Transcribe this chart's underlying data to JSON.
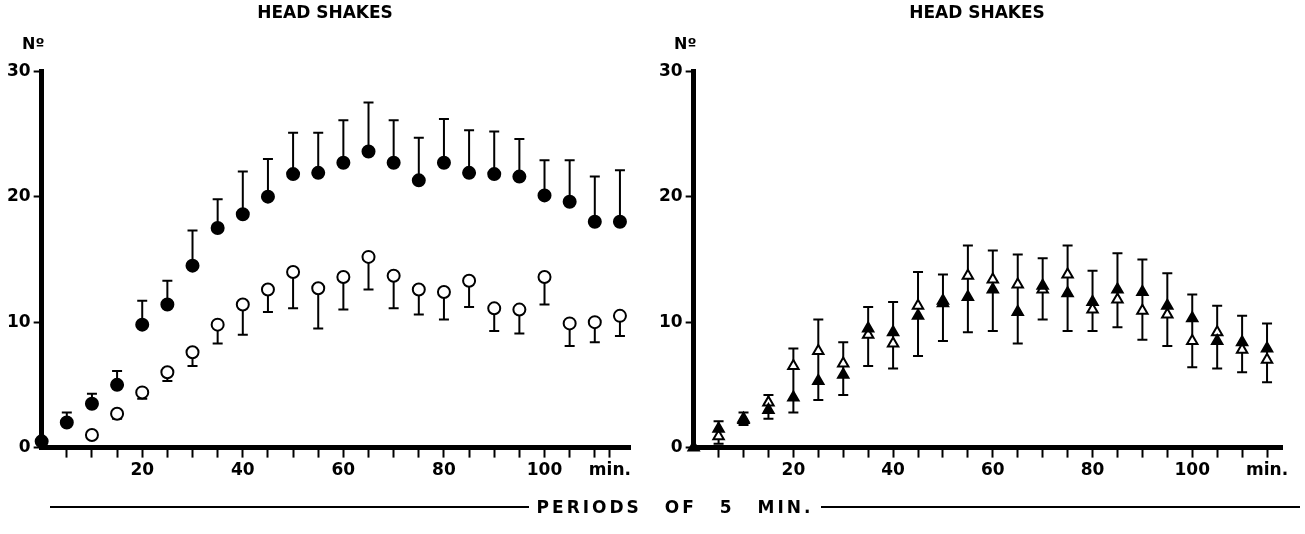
{
  "chart_data": [
    {
      "type": "scatter",
      "title": "HEAD SHAKES",
      "ylabel": "Nº",
      "xlabel": "PERIODS OF 5 MIN.",
      "xlim": [
        0,
        117
      ],
      "ylim": [
        0,
        30
      ],
      "yticks": [
        0,
        10,
        20,
        30
      ],
      "xticks": [
        {
          "value": 5,
          "label": null
        },
        {
          "value": 10,
          "label": null
        },
        {
          "value": 15,
          "label": null
        },
        20,
        {
          "value": 25,
          "label": null
        },
        {
          "value": 30,
          "label": null
        },
        {
          "value": 35,
          "label": null
        },
        40,
        {
          "value": 45,
          "label": null
        },
        {
          "value": 50,
          "label": null
        },
        {
          "value": 55,
          "label": null
        },
        60,
        {
          "value": 65,
          "label": null
        },
        {
          "value": 70,
          "label": null
        },
        {
          "value": 75,
          "label": null
        },
        80,
        {
          "value": 85,
          "label": null
        },
        {
          "value": 90,
          "label": null
        },
        {
          "value": 95,
          "label": null
        },
        100,
        {
          "value": 105,
          "label": null
        },
        {
          "value": 110,
          "label": null
        },
        {
          "value": 113,
          "label": "min."
        }
      ],
      "grid": false,
      "legend": false,
      "x": [
        0,
        5,
        10,
        15,
        20,
        25,
        30,
        35,
        40,
        45,
        50,
        55,
        60,
        65,
        70,
        75,
        80,
        85,
        90,
        95,
        100,
        105,
        110,
        115
      ],
      "series": [
        {
          "color": "#000000",
          "marker": "circle",
          "values": [
            0.5,
            2,
            3.5,
            5,
            9.8,
            11.4,
            14.5,
            17.5,
            18.6,
            20,
            21.8,
            21.9,
            22.7,
            23.6,
            22.7,
            21.3,
            22.7,
            21.9,
            21.8,
            21.6,
            20.1,
            19.6,
            18,
            18
          ],
          "errors": [
            null,
            [
              2,
              2.8
            ],
            [
              3.5,
              4.3
            ],
            [
              5,
              6.1
            ],
            [
              9.8,
              11.7
            ],
            [
              11.4,
              13.3
            ],
            [
              14.5,
              17.3
            ],
            [
              17.5,
              19.8
            ],
            [
              18.6,
              22
            ],
            [
              20,
              23
            ],
            [
              21.8,
              25.1
            ],
            [
              21.9,
              25.1
            ],
            [
              22.7,
              26.1
            ],
            [
              23.6,
              27.5
            ],
            [
              22.7,
              26.1
            ],
            [
              21.3,
              24.7
            ],
            [
              22.7,
              26.2
            ],
            [
              21.9,
              25.3
            ],
            [
              21.8,
              25.2
            ],
            [
              21.6,
              24.6
            ],
            [
              20.1,
              22.9
            ],
            [
              19.6,
              22.9
            ],
            [
              18,
              21.6
            ],
            [
              18,
              22.1
            ]
          ]
        },
        {
          "color": "#ffffff",
          "marker": "circle",
          "values": [
            null,
            null,
            1,
            2.7,
            4.4,
            6,
            7.6,
            9.8,
            11.4,
            12.6,
            14,
            12.7,
            13.6,
            15.2,
            13.7,
            12.6,
            12.4,
            13.3,
            11.1,
            11,
            13.6,
            9.9,
            10,
            10.5
          ],
          "errors": [
            null,
            null,
            null,
            [
              2.3,
              2.7
            ],
            [
              3.9,
              4.4
            ],
            [
              5.3,
              6
            ],
            [
              6.5,
              7.6
            ],
            [
              8.3,
              9.8
            ],
            [
              9,
              11.4
            ],
            [
              10.8,
              12.6
            ],
            [
              11.1,
              14
            ],
            [
              9.5,
              12.7
            ],
            [
              11,
              13.6
            ],
            [
              12.6,
              15.2
            ],
            [
              11.1,
              13.7
            ],
            [
              10.6,
              12.6
            ],
            [
              10.2,
              12.4
            ],
            [
              11.2,
              13.3
            ],
            [
              9.3,
              11.1
            ],
            [
              9.1,
              11
            ],
            [
              11.4,
              13.6
            ],
            [
              8.1,
              9.9
            ],
            [
              8.4,
              10
            ],
            [
              8.9,
              10.5
            ]
          ]
        }
      ]
    },
    {
      "type": "scatter",
      "title": "HEAD SHAKES",
      "ylabel": "Nº",
      "xlim": [
        0,
        118
      ],
      "ylim": [
        0,
        30
      ],
      "yticks": [
        0,
        10,
        20,
        30
      ],
      "xticks": [
        {
          "value": 5,
          "label": null
        },
        {
          "value": 10,
          "label": null
        },
        {
          "value": 15,
          "label": null
        },
        20,
        {
          "value": 25,
          "label": null
        },
        {
          "value": 30,
          "label": null
        },
        {
          "value": 35,
          "label": null
        },
        40,
        {
          "value": 45,
          "label": null
        },
        {
          "value": 50,
          "label": null
        },
        {
          "value": 55,
          "label": null
        },
        60,
        {
          "value": 65,
          "label": null
        },
        {
          "value": 70,
          "label": null
        },
        {
          "value": 75,
          "label": null
        },
        80,
        {
          "value": 85,
          "label": null
        },
        {
          "value": 90,
          "label": null
        },
        {
          "value": 95,
          "label": null
        },
        100,
        {
          "value": 105,
          "label": null
        },
        {
          "value": 110,
          "label": null
        },
        {
          "value": 115,
          "label": "min."
        }
      ],
      "grid": false,
      "legend": false,
      "x": [
        0,
        5,
        10,
        15,
        20,
        25,
        30,
        35,
        40,
        45,
        50,
        55,
        60,
        65,
        70,
        75,
        80,
        85,
        90,
        95,
        100,
        105,
        110,
        115
      ],
      "series": [
        {
          "color": "#000000",
          "marker": "triangle",
          "values": [
            0,
            1.5,
            2.2,
            3,
            4,
            5.3,
            5.8,
            9.5,
            9.2,
            10.5,
            11.5,
            12,
            12.6,
            10.8,
            12.9,
            12.3,
            11.6,
            12.6,
            12.4,
            11.3,
            10.3,
            8.5,
            8.4,
            7.9
          ]
        },
        {
          "color": "#ffffff",
          "marker": "triangle",
          "values": [
            null,
            0.9,
            2.3,
            3.6,
            6.5,
            7.7,
            6.7,
            9,
            8.3,
            11.3,
            11.7,
            13.7,
            13.4,
            13,
            12.6,
            13.8,
            11,
            11.8,
            10.9,
            10.6,
            8.5,
            9.2,
            7.8,
            7
          ],
          "errors": [
            null,
            [
              0.3,
              2.1
            ],
            [
              1.8,
              2.8
            ],
            [
              2.3,
              4.2
            ],
            [
              2.8,
              7.9
            ],
            [
              3.8,
              10.2
            ],
            [
              4.2,
              8.4
            ],
            [
              6.5,
              11.2
            ],
            [
              6.3,
              11.6
            ],
            [
              7.3,
              14
            ],
            [
              8.5,
              13.8
            ],
            [
              9.2,
              16.1
            ],
            [
              9.3,
              15.7
            ],
            [
              8.3,
              15.4
            ],
            [
              10.2,
              15.1
            ],
            [
              9.3,
              16.1
            ],
            [
              9.3,
              14.1
            ],
            [
              9.6,
              15.5
            ],
            [
              8.6,
              15
            ],
            [
              8.1,
              13.9
            ],
            [
              6.4,
              12.2
            ],
            [
              6.3,
              11.3
            ],
            [
              6,
              10.5
            ],
            [
              5.2,
              9.9
            ]
          ]
        }
      ]
    }
  ]
}
